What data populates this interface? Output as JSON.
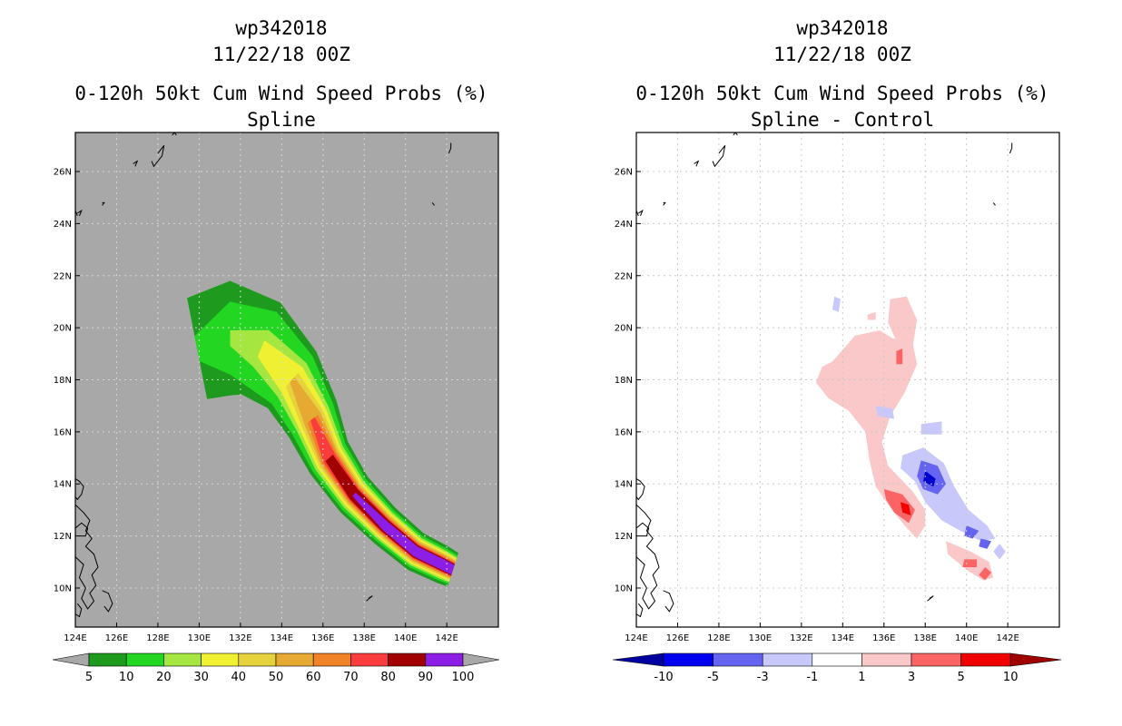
{
  "chart_data": [
    {
      "type": "heatmap",
      "id": "left",
      "header": {
        "storm": "wp342018",
        "datetime": "11/22/18 00Z"
      },
      "title": "0-120h 50kt Cum Wind Speed Probs (%)",
      "subtitle": "Spline",
      "xlim": [
        124,
        144.5
      ],
      "ylim": [
        8.5,
        27.5
      ],
      "grid": true,
      "background": "#a8a8a8",
      "x_ticks": [
        124,
        126,
        128,
        130,
        132,
        134,
        136,
        138,
        140,
        142
      ],
      "x_tick_labels": [
        "124E",
        "126E",
        "128E",
        "130E",
        "132E",
        "134E",
        "136E",
        "138E",
        "140E",
        "142E"
      ],
      "y_ticks": [
        10,
        12,
        14,
        16,
        18,
        20,
        22,
        24,
        26
      ],
      "y_tick_labels": [
        "10N",
        "12N",
        "14N",
        "16N",
        "18N",
        "20N",
        "22N",
        "24N",
        "26N"
      ],
      "track": [
        [
          129.9,
          19.2
        ],
        [
          131.5,
          19.6
        ],
        [
          133.0,
          19.2
        ],
        [
          134.5,
          18.0
        ],
        [
          135.5,
          16.5
        ],
        [
          136.3,
          15.0
        ],
        [
          137.5,
          13.6
        ],
        [
          139.0,
          12.4
        ],
        [
          140.5,
          11.4
        ],
        [
          141.8,
          10.9
        ],
        [
          142.3,
          10.7
        ]
      ],
      "contours": [
        {
          "level": 5,
          "color": "#1e9b1e",
          "halfwidth": [
            2.0,
            2.2,
            2.0,
            1.6,
            1.35,
            1.1,
            0.95,
            0.85,
            0.8,
            0.75,
            0.7
          ]
        },
        {
          "level": 10,
          "color": "#22d622",
          "halfwidth": [
            0.5,
            1.4,
            1.6,
            1.35,
            1.15,
            0.95,
            0.82,
            0.73,
            0.68,
            0.64,
            0.6
          ]
        },
        {
          "level": 20,
          "color": "#a6e640",
          "halfwidth": [
            0,
            0.3,
            0.8,
            0.95,
            0.9,
            0.8,
            0.7,
            0.63,
            0.59,
            0.56,
            0.52
          ]
        },
        {
          "level": 30,
          "color": "#f0f032",
          "halfwidth": [
            0,
            0,
            0.35,
            0.7,
            0.75,
            0.68,
            0.6,
            0.55,
            0.52,
            0.49,
            0.46
          ]
        },
        {
          "level": 40,
          "color": "#e6d23c",
          "halfwidth": [
            0,
            0,
            0,
            0.4,
            0.6,
            0.57,
            0.51,
            0.48,
            0.46,
            0.43,
            0.41
          ]
        },
        {
          "level": 50,
          "color": "#e6aa32",
          "halfwidth": [
            0,
            0,
            0,
            0.15,
            0.45,
            0.48,
            0.44,
            0.42,
            0.4,
            0.38,
            0.36
          ]
        },
        {
          "level": 60,
          "color": "#f08228",
          "halfwidth": [
            0,
            0,
            0,
            0,
            0.3,
            0.4,
            0.38,
            0.36,
            0.35,
            0.33,
            0.31
          ]
        },
        {
          "level": 70,
          "color": "#fa3c3c",
          "halfwidth": [
            0,
            0,
            0,
            0,
            0.12,
            0.32,
            0.32,
            0.31,
            0.3,
            0.28,
            0.27
          ]
        },
        {
          "level": 80,
          "color": "#a00000",
          "halfwidth": [
            0,
            0,
            0,
            0,
            0,
            0.22,
            0.27,
            0.27,
            0.26,
            0.25,
            0.24
          ]
        },
        {
          "level": 90,
          "color": "#8c1ee6",
          "halfwidth": [
            0,
            0,
            0,
            0,
            0,
            0,
            0.1,
            0.2,
            0.21,
            0.21,
            0.2
          ]
        }
      ],
      "colorbar": {
        "colors": [
          "#1e9b1e",
          "#22d622",
          "#a6e640",
          "#f0f032",
          "#e6d23c",
          "#e6aa32",
          "#f08228",
          "#fa3c3c",
          "#a00000",
          "#8c1ee6"
        ],
        "labels": [
          "5",
          "10",
          "20",
          "30",
          "40",
          "50",
          "60",
          "70",
          "80",
          "90",
          "100"
        ],
        "end_low": "#a8a8a8",
        "end_high": "#a8a8a8"
      }
    },
    {
      "type": "heatmap",
      "id": "right",
      "header": {
        "storm": "wp342018",
        "datetime": "11/22/18 00Z"
      },
      "title": "0-120h 50kt Cum Wind Speed Probs (%)",
      "subtitle": "Spline - Control",
      "xlim": [
        124,
        144.5
      ],
      "ylim": [
        8.5,
        27.5
      ],
      "grid": true,
      "background": "#ffffff",
      "x_ticks": [
        124,
        126,
        128,
        130,
        132,
        134,
        136,
        138,
        140,
        142
      ],
      "x_tick_labels": [
        "124E",
        "126E",
        "128E",
        "130E",
        "132E",
        "134E",
        "136E",
        "138E",
        "140E",
        "142E"
      ],
      "y_ticks": [
        10,
        12,
        14,
        16,
        18,
        20,
        22,
        24,
        26
      ],
      "y_tick_labels": [
        "10N",
        "12N",
        "14N",
        "16N",
        "18N",
        "20N",
        "22N",
        "24N",
        "26N"
      ],
      "regions": [
        {
          "level": "1 to 3",
          "color": "#fac8c8",
          "points": [
            [
              133.5,
              18.7
            ],
            [
              134.6,
              19.7
            ],
            [
              135.8,
              19.9
            ],
            [
              136.4,
              19.6
            ],
            [
              137.4,
              19.4
            ],
            [
              137.6,
              18.6
            ],
            [
              137.0,
              17.5
            ],
            [
              136.3,
              16.6
            ],
            [
              135.9,
              15.6
            ],
            [
              136.2,
              14.7
            ],
            [
              137.4,
              13.7
            ],
            [
              138.0,
              13.0
            ],
            [
              138.0,
              12.4
            ],
            [
              137.6,
              11.9
            ],
            [
              137.0,
              12.4
            ],
            [
              136.3,
              13.1
            ],
            [
              135.6,
              13.9
            ],
            [
              135.3,
              14.9
            ],
            [
              135.1,
              16.0
            ],
            [
              134.3,
              16.8
            ],
            [
              133.3,
              17.3
            ],
            [
              132.7,
              17.9
            ],
            [
              133.0,
              18.5
            ]
          ]
        },
        {
          "level": "1 to 3",
          "color": "#fac8c8",
          "points": [
            [
              136.3,
              21.1
            ],
            [
              137.1,
              21.2
            ],
            [
              137.6,
              20.3
            ],
            [
              137.4,
              19.3
            ],
            [
              136.6,
              19.5
            ],
            [
              136.2,
              20.2
            ]
          ]
        },
        {
          "level": "1 to 3",
          "color": "#fac8c8",
          "points": [
            [
              135.2,
              20.5
            ],
            [
              135.6,
              20.6
            ],
            [
              135.6,
              20.3
            ],
            [
              135.2,
              20.3
            ]
          ]
        },
        {
          "level": "1 to 3",
          "color": "#fac8c8",
          "points": [
            [
              139.0,
              11.8
            ],
            [
              140.2,
              11.4
            ],
            [
              141.1,
              11.0
            ],
            [
              141.3,
              10.4
            ],
            [
              140.8,
              10.3
            ],
            [
              140.0,
              10.7
            ],
            [
              139.1,
              11.3
            ]
          ]
        },
        {
          "level": "3 to 5",
          "color": "#fa6464",
          "points": [
            [
              136.0,
              13.8
            ],
            [
              136.9,
              13.6
            ],
            [
              137.5,
              13.0
            ],
            [
              137.2,
              12.5
            ],
            [
              136.5,
              12.9
            ],
            [
              136.1,
              13.4
            ]
          ]
        },
        {
          "level": "3 to 5",
          "color": "#fa6464",
          "points": [
            [
              139.9,
              11.1
            ],
            [
              140.5,
              11.1
            ],
            [
              140.5,
              10.8
            ],
            [
              139.8,
              10.8
            ]
          ]
        },
        {
          "level": "3 to 5",
          "color": "#fa6464",
          "points": [
            [
              140.9,
              10.8
            ],
            [
              141.2,
              10.6
            ],
            [
              140.9,
              10.3
            ],
            [
              140.6,
              10.5
            ]
          ]
        },
        {
          "level": "3 to 5",
          "color": "#fa6464",
          "points": [
            [
              136.6,
              19.1
            ],
            [
              136.9,
              19.2
            ],
            [
              136.9,
              18.6
            ],
            [
              136.6,
              18.6
            ]
          ]
        },
        {
          "level": "5 to 10",
          "color": "#f00000",
          "points": [
            [
              136.8,
              13.3
            ],
            [
              137.2,
              13.2
            ],
            [
              137.3,
              12.8
            ],
            [
              136.9,
              12.9
            ]
          ]
        },
        {
          "level": "-1 to -3",
          "color": "#c8c8fa",
          "points": [
            [
              136.9,
              15.1
            ],
            [
              137.9,
              15.4
            ],
            [
              138.9,
              14.8
            ],
            [
              139.4,
              13.9
            ],
            [
              140.1,
              13.0
            ],
            [
              141.0,
              12.4
            ],
            [
              141.4,
              11.9
            ],
            [
              140.7,
              11.8
            ],
            [
              139.7,
              12.2
            ],
            [
              138.8,
              12.6
            ],
            [
              138.0,
              13.3
            ],
            [
              137.5,
              14.1
            ],
            [
              136.8,
              14.6
            ]
          ]
        },
        {
          "level": "-1 to -3",
          "color": "#c8c8fa",
          "points": [
            [
              137.8,
              16.3
            ],
            [
              138.8,
              16.4
            ],
            [
              138.8,
              15.9
            ],
            [
              137.8,
              15.9
            ]
          ]
        },
        {
          "level": "-1 to -3",
          "color": "#c8c8fa",
          "points": [
            [
              135.6,
              17.0
            ],
            [
              136.4,
              16.9
            ],
            [
              136.5,
              16.5
            ],
            [
              135.7,
              16.6
            ]
          ]
        },
        {
          "level": "-1 to -3",
          "color": "#c8c8fa",
          "points": [
            [
              141.6,
              11.7
            ],
            [
              141.9,
              11.4
            ],
            [
              141.6,
              11.1
            ],
            [
              141.3,
              11.4
            ]
          ]
        },
        {
          "level": "-1 to -3",
          "color": "#c8c8fa",
          "points": [
            [
              133.6,
              21.2
            ],
            [
              133.9,
              21.1
            ],
            [
              133.8,
              20.6
            ],
            [
              133.5,
              20.7
            ]
          ]
        },
        {
          "level": "-3 to -5",
          "color": "#6464f0",
          "points": [
            [
              137.8,
              14.9
            ],
            [
              138.6,
              14.7
            ],
            [
              139.0,
              14.0
            ],
            [
              138.6,
              13.6
            ],
            [
              137.9,
              13.8
            ],
            [
              137.6,
              14.3
            ]
          ]
        },
        {
          "level": "-3 to -5",
          "color": "#6464f0",
          "points": [
            [
              140.0,
              12.4
            ],
            [
              140.6,
              12.2
            ],
            [
              140.3,
              11.9
            ],
            [
              139.9,
              12.0
            ]
          ]
        },
        {
          "level": "-3 to -5",
          "color": "#6464f0",
          "points": [
            [
              140.7,
              11.9
            ],
            [
              141.2,
              11.8
            ],
            [
              141.0,
              11.5
            ],
            [
              140.6,
              11.6
            ]
          ]
        },
        {
          "level": "-5 to -10",
          "color": "#0000cd",
          "points": [
            [
              138.0,
              14.5
            ],
            [
              138.5,
              14.2
            ],
            [
              138.4,
              13.9
            ],
            [
              137.9,
              14.1
            ]
          ]
        }
      ],
      "colorbar": {
        "colors": [
          "#0000f0",
          "#6464f0",
          "#c8c8fa",
          "#ffffff",
          "#fac8c8",
          "#fa6464",
          "#f00000"
        ],
        "labels": [
          "-10",
          "-5",
          "-3",
          "-1",
          "1",
          "3",
          "5",
          "10"
        ],
        "end_low": "#0000a0",
        "end_high": "#a00000"
      }
    }
  ]
}
